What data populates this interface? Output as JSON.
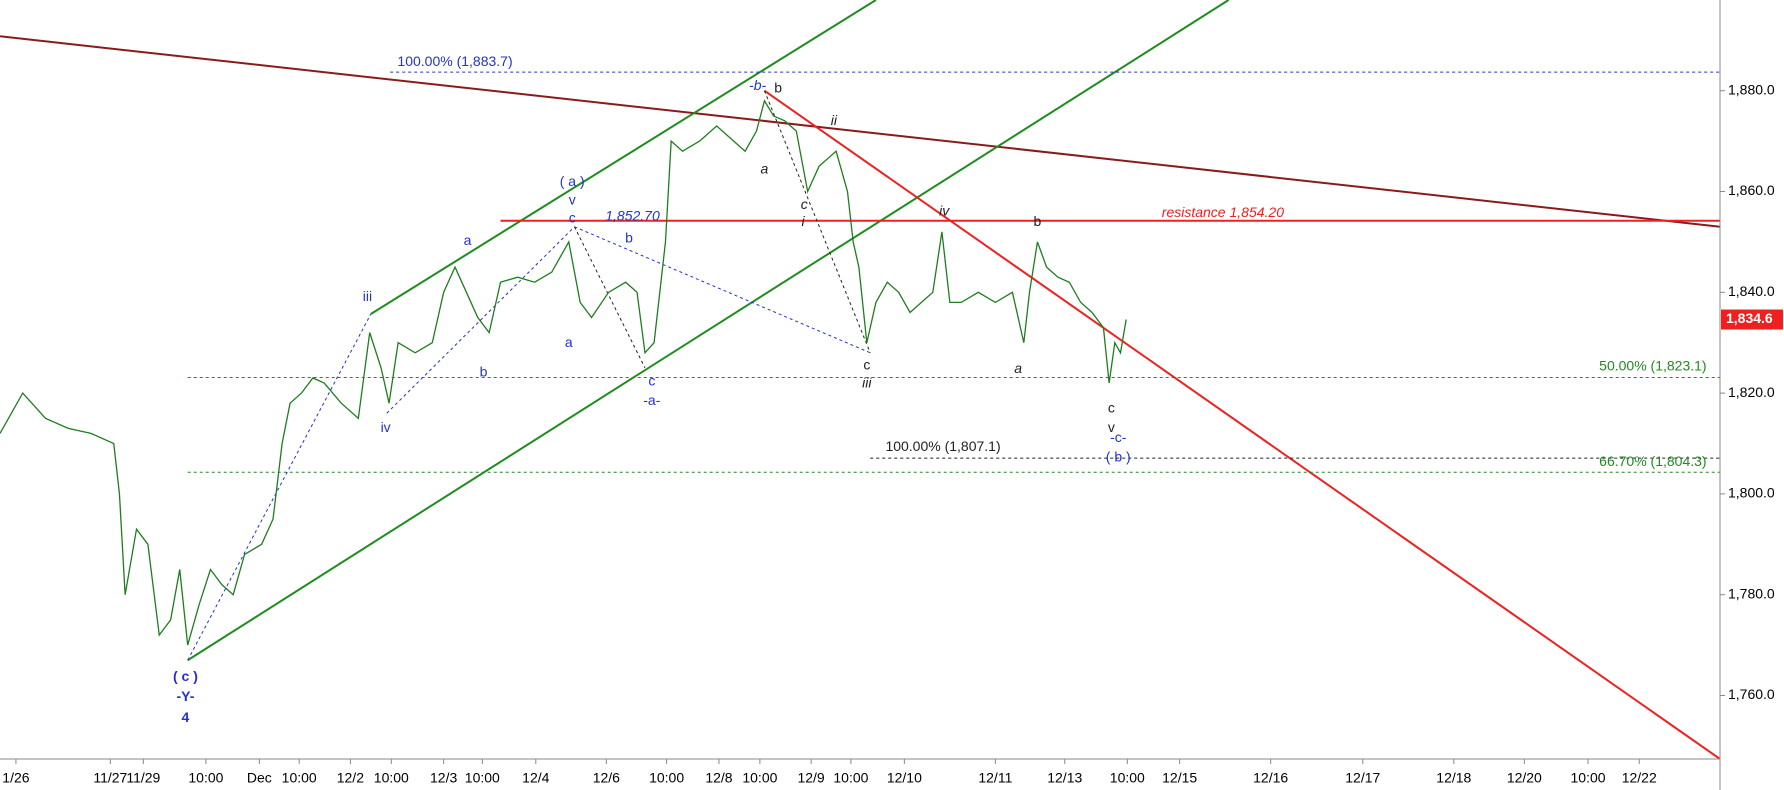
{
  "chart_data": {
    "type": "line",
    "xlim": [
      0,
      1512
    ],
    "ylim": [
      1747.4,
      1898
    ],
    "xticks": [
      {
        "value": 14,
        "label": "1/26"
      },
      {
        "value": 97,
        "label": "11/27"
      },
      {
        "value": 126,
        "label": "11/29"
      },
      {
        "value": 181,
        "label": "10:00"
      },
      {
        "value": 228,
        "label": "Dec"
      },
      {
        "value": 263,
        "label": "10:00"
      },
      {
        "value": 308,
        "label": "12/2"
      },
      {
        "value": 344,
        "label": "10:00"
      },
      {
        "value": 390,
        "label": "12/3"
      },
      {
        "value": 424,
        "label": "10:00"
      },
      {
        "value": 471,
        "label": "12/4"
      },
      {
        "value": 533,
        "label": "12/6"
      },
      {
        "value": 586,
        "label": "10:00"
      },
      {
        "value": 632,
        "label": "12/8"
      },
      {
        "value": 668,
        "label": "10:00"
      },
      {
        "value": 713,
        "label": "12/9"
      },
      {
        "value": 748,
        "label": "10:00"
      },
      {
        "value": 795,
        "label": "12/10"
      },
      {
        "value": 875,
        "label": "12/11"
      },
      {
        "value": 936,
        "label": "12/13"
      },
      {
        "value": 991,
        "label": "10:00"
      },
      {
        "value": 1037,
        "label": "12/15"
      },
      {
        "value": 1117,
        "label": "12/16"
      },
      {
        "value": 1198,
        "label": "12/17"
      },
      {
        "value": 1278,
        "label": "12/18"
      },
      {
        "value": 1340,
        "label": "12/20"
      },
      {
        "value": 1396,
        "label": "10:00"
      },
      {
        "value": 1441,
        "label": "12/22"
      }
    ],
    "yticks": [
      {
        "value": 1760,
        "label": "1,760.0"
      },
      {
        "value": 1780,
        "label": "1,780.0"
      },
      {
        "value": 1800,
        "label": "1,800.0"
      },
      {
        "value": 1820,
        "label": "1,820.0"
      },
      {
        "value": 1840,
        "label": "1,840.0"
      },
      {
        "value": 1860,
        "label": "1,860.0"
      },
      {
        "value": 1880,
        "label": "1,880.0"
      }
    ],
    "last_price": {
      "value": 1834.6,
      "label": "1,834.6"
    },
    "color": "#1e7d1e",
    "x": [
      0,
      20,
      40,
      60,
      80,
      100,
      105,
      110,
      120,
      130,
      140,
      150,
      158,
      165,
      175,
      185,
      195,
      205,
      215,
      230,
      240,
      248,
      255,
      265,
      275,
      285,
      300,
      315,
      325,
      335,
      342,
      350,
      365,
      380,
      390,
      400,
      410,
      420,
      430,
      440,
      455,
      470,
      485,
      500,
      510,
      520,
      535,
      550,
      560,
      567,
      575,
      585,
      590,
      600,
      615,
      630,
      645,
      655,
      665,
      672,
      680,
      690,
      700,
      710,
      720,
      735,
      745,
      750,
      755,
      762,
      770,
      780,
      790,
      800,
      810,
      820,
      828,
      835,
      845,
      860,
      875,
      890,
      900,
      905,
      912,
      920,
      930,
      940,
      950,
      960,
      970,
      975,
      980,
      985,
      990
    ],
    "values": [
      1812,
      1820,
      1815,
      1813,
      1812,
      1810,
      1800,
      1780,
      1793,
      1790,
      1772,
      1775,
      1785,
      1770,
      1778,
      1785,
      1782,
      1780,
      1788,
      1790,
      1795,
      1810,
      1818,
      1820,
      1823,
      1822,
      1818,
      1815,
      1832,
      1825,
      1818,
      1830,
      1828,
      1830,
      1840,
      1845,
      1840,
      1835,
      1832,
      1842,
      1843,
      1842,
      1844,
      1850,
      1838,
      1835,
      1840,
      1842,
      1840,
      1828,
      1830,
      1850,
      1870,
      1868,
      1870,
      1873,
      1870,
      1868,
      1872,
      1878,
      1875,
      1874,
      1872,
      1860,
      1865,
      1868,
      1860,
      1850,
      1845,
      1830,
      1838,
      1842,
      1840,
      1836,
      1838,
      1840,
      1852,
      1838,
      1838,
      1840,
      1838,
      1840,
      1830,
      1840,
      1850,
      1845,
      1843,
      1842,
      1838,
      1836,
      1833,
      1822,
      1830,
      1828,
      1834.6
    ],
    "trendlines": [
      {
        "points": [
          [
            0,
            1890.8
          ],
          [
            1512,
            1853
          ]
        ],
        "color": "#8b1a1a",
        "width": 2
      },
      {
        "points": [
          [
            326,
            1835.7
          ],
          [
            770,
            1898
          ]
        ],
        "color": "#1e8c1e",
        "width": 2
      },
      {
        "points": [
          [
            165,
            1767
          ],
          [
            1080,
            1898
          ]
        ],
        "color": "#1e8c1e",
        "width": 2
      },
      {
        "points": [
          [
            672,
            1880
          ],
          [
            1512,
            1747.4
          ]
        ],
        "color": "#ee2020",
        "width": 2
      },
      {
        "points": [
          [
            440,
            1854.2
          ],
          [
            1512,
            1854.2
          ]
        ],
        "color": "#ee2020",
        "width": 2
      },
      {
        "points": [
          [
            343,
            1883.7
          ],
          [
            1512,
            1883.7
          ]
        ],
        "color": "#2233cc",
        "width": 1,
        "dash": true
      },
      {
        "points": [
          [
            165,
            1823.1
          ],
          [
            1512,
            1823.1
          ]
        ],
        "color": "#1e8c1e",
        "width": 1,
        "dash": true
      },
      {
        "points": [
          [
            165,
            1804.3
          ],
          [
            1512,
            1804.3
          ]
        ],
        "color": "#1e8c1e",
        "width": 1,
        "dash": true
      },
      {
        "points": [
          [
            765,
            1807.1
          ],
          [
            1512,
            1807.1
          ]
        ],
        "color": "#222222",
        "width": 1,
        "dash": true
      },
      {
        "points": [
          [
            165,
            1767
          ],
          [
            326,
            1835.7
          ]
        ],
        "color": "#2233cc",
        "width": 1,
        "dash": true
      },
      {
        "points": [
          [
            340,
            1816
          ],
          [
            505,
            1853
          ]
        ],
        "color": "#2233cc",
        "width": 1,
        "dash": true
      },
      {
        "points": [
          [
            505,
            1853
          ],
          [
            765,
            1828
          ]
        ],
        "color": "#2233cc",
        "width": 1,
        "dash": true
      },
      {
        "points": [
          [
            505,
            1853
          ],
          [
            567,
            1825
          ]
        ],
        "color": "#222222",
        "width": 1,
        "dash": true
      },
      {
        "points": [
          [
            672,
            1880
          ],
          [
            765,
            1828
          ]
        ],
        "color": "#222222",
        "width": 1,
        "dash": true
      }
    ],
    "annotations": [
      {
        "text": "100.00% (1,883.7)",
        "x": 400,
        "y": 1885.6,
        "color": "#2233cc"
      },
      {
        "text": "( a )",
        "x": 503,
        "y": 1861.8,
        "color": "#2233cc"
      },
      {
        "text": "v",
        "x": 503,
        "y": 1858.2,
        "color": "#2233cc"
      },
      {
        "text": "c",
        "x": 503,
        "y": 1854.6,
        "color": "#2233cc"
      },
      {
        "text": "1,852.70",
        "x": 556,
        "y": 1855,
        "color": "#2233cc",
        "italic": true
      },
      {
        "text": "a",
        "x": 411,
        "y": 1850.1,
        "color": "#2233cc"
      },
      {
        "text": "iii",
        "x": 323,
        "y": 1839,
        "color": "#2233cc"
      },
      {
        "text": "b",
        "x": 553,
        "y": 1850.6,
        "color": "#2233cc"
      },
      {
        "text": "b",
        "x": 425,
        "y": 1824,
        "color": "#2233cc"
      },
      {
        "text": "a",
        "x": 500,
        "y": 1829.9,
        "color": "#2233cc"
      },
      {
        "text": "iv",
        "x": 339,
        "y": 1813,
        "color": "#2233cc"
      },
      {
        "text": "c",
        "x": 573,
        "y": 1822.2,
        "color": "#2233cc"
      },
      {
        "text": "-a-",
        "x": 573,
        "y": 1818.4,
        "color": "#2233cc"
      },
      {
        "text": "-b-",
        "x": 666,
        "y": 1880.9,
        "color": "#2233cc",
        "italic": true
      },
      {
        "text": "b",
        "x": 684,
        "y": 1880.4,
        "color": "#222222"
      },
      {
        "text": "ii",
        "x": 733,
        "y": 1873.9,
        "color": "#222222",
        "italic": true
      },
      {
        "text": "a",
        "x": 672,
        "y": 1864.3,
        "color": "#222222",
        "italic": true
      },
      {
        "text": "c",
        "x": 707,
        "y": 1857.3,
        "color": "#222222",
        "italic": true
      },
      {
        "text": "i",
        "x": 706,
        "y": 1853.9,
        "color": "#222222",
        "italic": true
      },
      {
        "text": "iv",
        "x": 830,
        "y": 1856,
        "color": "#222222",
        "italic": true
      },
      {
        "text": "c",
        "x": 762,
        "y": 1825.4,
        "color": "#222222"
      },
      {
        "text": "iii",
        "x": 762,
        "y": 1821.8,
        "color": "#222222",
        "italic": true
      },
      {
        "text": "b",
        "x": 912,
        "y": 1853.9,
        "color": "#222222"
      },
      {
        "text": "a",
        "x": 895,
        "y": 1824.7,
        "color": "#222222",
        "italic": true
      },
      {
        "text": "c",
        "x": 977,
        "y": 1816.9,
        "color": "#222222"
      },
      {
        "text": "v",
        "x": 977,
        "y": 1813,
        "color": "#222222"
      },
      {
        "text": "-c-",
        "x": 983,
        "y": 1811,
        "color": "#2233cc"
      },
      {
        "text": "( b )",
        "x": 983,
        "y": 1807.2,
        "color": "#2233cc"
      },
      {
        "text": "( c )",
        "x": 163,
        "y": 1763.6,
        "color": "#2233cc",
        "big": true
      },
      {
        "text": "-Y-",
        "x": 163,
        "y": 1759.6,
        "color": "#2233cc",
        "big": true
      },
      {
        "text": "4",
        "x": 163,
        "y": 1755.5,
        "color": "#2233cc",
        "big": true
      },
      {
        "text": "resistance 1,854.20",
        "x": 1075,
        "y": 1855.7,
        "color": "#ee2020",
        "italic": true,
        "big": true
      },
      {
        "text": "50.00% (1,823.1)",
        "x": 1453,
        "y": 1825.2,
        "color": "#1e8c1e",
        "big": true
      },
      {
        "text": "100.00% (1,807.1)",
        "x": 829,
        "y": 1809.2,
        "color": "#222222",
        "big": true
      },
      {
        "text": "66.70% (1,804.3)",
        "x": 1453,
        "y": 1806.3,
        "color": "#1e8c1e",
        "big": true
      }
    ]
  }
}
